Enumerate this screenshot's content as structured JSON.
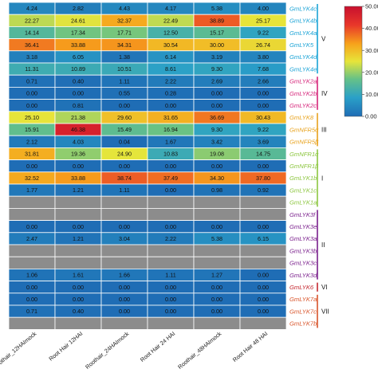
{
  "chart_data": {
    "type": "heatmap",
    "title": "",
    "columns": [
      "Roothair_12HAImock",
      "Root Hair 12HAI",
      "Roothair_24HAImock",
      "Root Hair 24 HAI",
      "Roothair_48HAImock",
      "Root Hair 48 HAI"
    ],
    "rows": [
      {
        "name": "GmLYK4c",
        "values": [
          4.24,
          2.82,
          4.43,
          4.17,
          5.38,
          4.0
        ],
        "color": "#1aa3d6"
      },
      {
        "name": "GmLYK4b",
        "values": [
          22.27,
          24.61,
          32.37,
          22.49,
          38.89,
          25.17
        ],
        "color": "#1aa3d6"
      },
      {
        "name": "GmLYK4a",
        "values": [
          14.14,
          17.34,
          17.71,
          12.5,
          15.17,
          9.22
        ],
        "color": "#1aa3d6"
      },
      {
        "name": "GmLYK5",
        "values": [
          36.41,
          33.88,
          34.31,
          30.54,
          30.0,
          26.74
        ],
        "color": "#1aa3d6"
      },
      {
        "name": "GmLYK4d",
        "values": [
          3.18,
          6.05,
          1.38,
          6.14,
          3.19,
          3.8
        ],
        "color": "#1aa3d6"
      },
      {
        "name": "GmLYK4e",
        "values": [
          11.31,
          10.89,
          10.51,
          8.61,
          9.3,
          7.68
        ],
        "color": "#1aa3d6"
      },
      {
        "name": "GmLYK2a",
        "values": [
          0.71,
          0.4,
          1.11,
          2.22,
          2.69,
          2.66
        ],
        "color": "#d6247a"
      },
      {
        "name": "GmLYK2b",
        "values": [
          0.0,
          0.0,
          0.55,
          0.28,
          0.0,
          0.0
        ],
        "color": "#d6247a"
      },
      {
        "name": "GmLYK2c",
        "values": [
          0.0,
          0.81,
          0.0,
          0.0,
          0.0,
          0.0
        ],
        "color": "#d6247a"
      },
      {
        "name": "GmLYK8",
        "values": [
          25.1,
          21.38,
          29.6,
          31.65,
          36.69,
          30.43
        ],
        "color": "#e8a21c"
      },
      {
        "name": "GmNFR5α",
        "values": [
          15.91,
          46.38,
          15.49,
          16.94,
          9.3,
          9.22
        ],
        "color": "#e8a21c"
      },
      {
        "name": "GmNFR5β",
        "values": [
          2.12,
          4.03,
          0.04,
          1.67,
          3.42,
          3.69
        ],
        "color": "#e8a21c"
      },
      {
        "name": "GmNFR1α",
        "values": [
          31.81,
          19.36,
          24.9,
          10.83,
          19.08,
          14.75
        ],
        "color": "#8cc63f"
      },
      {
        "name": "GmNFR1β",
        "values": [
          0.0,
          0.0,
          0.0,
          0.0,
          0.0,
          0.0
        ],
        "color": "#8cc63f"
      },
      {
        "name": "GmLYK1b",
        "values": [
          32.52,
          33.88,
          38.74,
          37.49,
          34.3,
          37.8
        ],
        "color": "#8cc63f"
      },
      {
        "name": "GmLYK1c",
        "values": [
          1.77,
          1.21,
          1.11,
          0.0,
          0.98,
          0.92
        ],
        "color": "#8cc63f"
      },
      {
        "name": "GmLYK1a",
        "values": [
          null,
          null,
          null,
          null,
          null,
          null
        ],
        "color": "#8cc63f"
      },
      {
        "name": "GmLYK3f",
        "values": [
          null,
          null,
          null,
          null,
          null,
          null
        ],
        "color": "#7a1f8c"
      },
      {
        "name": "GmLYK3e",
        "values": [
          0.0,
          0.0,
          0.0,
          0.0,
          0.0,
          0.0
        ],
        "color": "#7a1f8c"
      },
      {
        "name": "GmLYK3a",
        "values": [
          2.47,
          1.21,
          3.04,
          2.22,
          5.38,
          6.15
        ],
        "color": "#7a1f8c"
      },
      {
        "name": "GmLYK3b",
        "values": [
          null,
          null,
          null,
          null,
          null,
          null
        ],
        "color": "#7a1f8c"
      },
      {
        "name": "GmLYK3c",
        "values": [
          null,
          null,
          null,
          null,
          null,
          null
        ],
        "color": "#7a1f8c"
      },
      {
        "name": "GmLYK3d",
        "values": [
          1.06,
          1.61,
          1.66,
          1.11,
          1.27,
          0.0
        ],
        "color": "#7a1f8c"
      },
      {
        "name": "GmLYK6",
        "values": [
          0.0,
          0.0,
          0.0,
          0.0,
          0.0,
          0.0
        ],
        "color": "#c4262e"
      },
      {
        "name": "GmLYK7a",
        "values": [
          0.0,
          0.0,
          0.0,
          0.0,
          0.0,
          0.0
        ],
        "color": "#d9542a"
      },
      {
        "name": "GmLYK7c",
        "values": [
          0.71,
          0.4,
          0.0,
          0.0,
          0.0,
          0.0
        ],
        "color": "#d9542a"
      },
      {
        "name": "GmLYK7b",
        "values": [
          null,
          null,
          null,
          null,
          null,
          null
        ],
        "color": "#d9542a"
      }
    ],
    "groups": [
      {
        "label": "V",
        "start": 0,
        "end": 5,
        "color": "#1aa3d6"
      },
      {
        "label": "IV",
        "start": 6,
        "end": 8,
        "color": "#d6247a"
      },
      {
        "label": "III",
        "start": 9,
        "end": 11,
        "color": "#e8a21c"
      },
      {
        "label": "I",
        "start": 12,
        "end": 16,
        "color": "#8cc63f"
      },
      {
        "label": "II",
        "start": 17,
        "end": 22,
        "color": "#7a1f8c"
      },
      {
        "label": "VI",
        "start": 23,
        "end": 23,
        "color": "#c4262e"
      },
      {
        "label": "VII",
        "start": 24,
        "end": 26,
        "color": "#d9542a"
      }
    ],
    "color_scale": {
      "min": 0,
      "max": 50,
      "ticks": [
        "50.00",
        "40.00",
        "30.00",
        "20.00",
        "10.00",
        "0.00"
      ],
      "stops": [
        "#1f6db5",
        "#2aa0c8",
        "#66c187",
        "#e7e53a",
        "#f7a21b",
        "#e8372a",
        "#c8102e"
      ],
      "missing_color": "#8c8c8c"
    },
    "value_format": "2 decimals"
  }
}
